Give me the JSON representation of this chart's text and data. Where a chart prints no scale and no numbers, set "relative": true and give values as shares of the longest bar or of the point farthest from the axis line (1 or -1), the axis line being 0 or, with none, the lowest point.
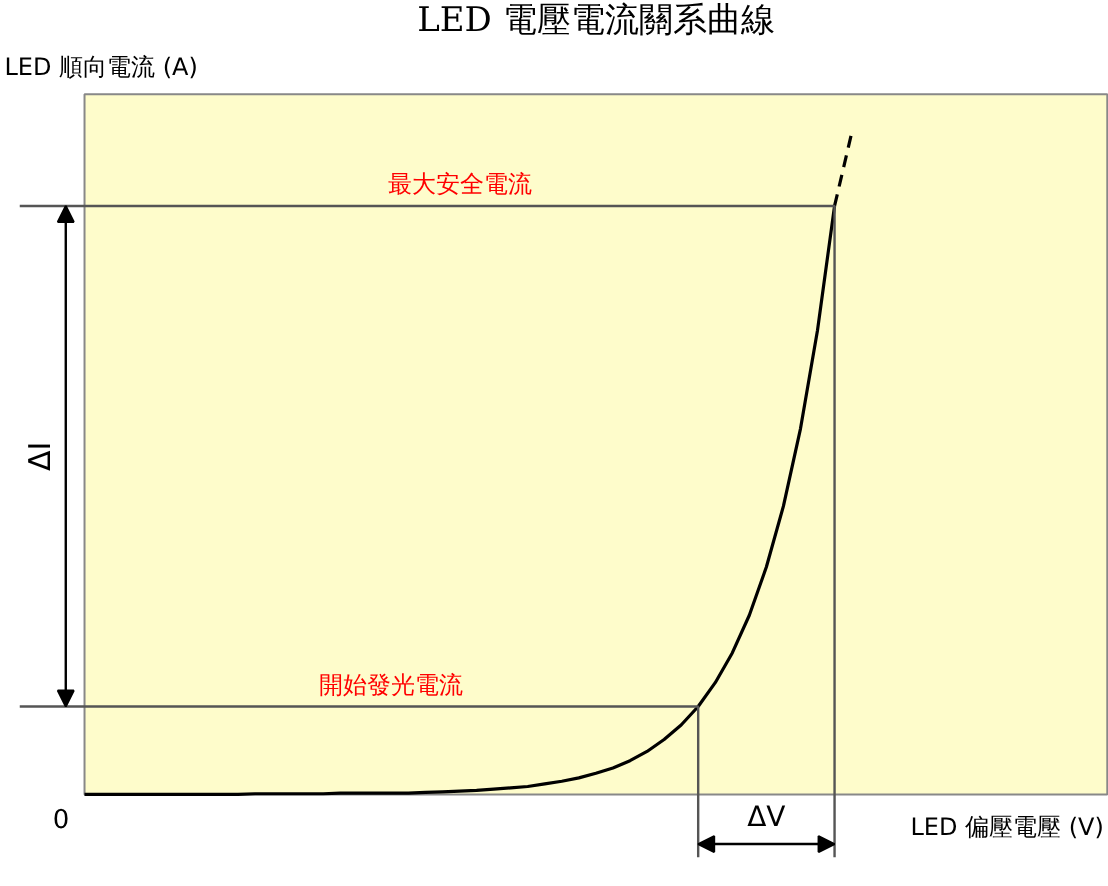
{
  "chart_data": {
    "type": "line",
    "title": "LED 電壓電流關系曲線",
    "xlabel": "LED 偏壓電壓 (V)",
    "ylabel": "LED 順向電流 (A)",
    "relative": true,
    "categories": [
      null,
      null,
      null,
      null,
      null,
      null,
      null,
      null,
      null,
      null,
      null,
      null,
      null,
      null,
      null,
      null,
      null,
      null,
      null,
      null,
      null,
      null,
      null,
      null,
      null,
      null,
      null,
      null,
      null,
      null,
      null,
      null,
      null,
      null,
      null,
      null,
      null,
      null,
      null,
      null,
      null,
      null,
      null,
      null,
      null,
      null,
      null,
      null,
      null,
      null,
      null,
      null,
      null,
      null,
      null,
      null,
      null,
      null,
      null,
      null,
      null
    ],
    "series": [
      {
        "color": "#000000",
        "line_style": "solid",
        "values": [
          0,
          0,
          0,
          0,
          0,
          0,
          0,
          0,
          0,
          0,
          0.001,
          0.001,
          0.001,
          0.001,
          0.001,
          0.002,
          0.002,
          0.002,
          0.002,
          0.002,
          0.003,
          0.004,
          0.005,
          0.006,
          0.008,
          0.01,
          0.012,
          0.016,
          0.02,
          0.025,
          0.032,
          0.04,
          0.051,
          0.065,
          0.083,
          0.105,
          0.133,
          0.169,
          0.214,
          0.271,
          0.344,
          0.436,
          0.553,
          0.702,
          0.89,
          null,
          null,
          null,
          null,
          null,
          null,
          null,
          null,
          null,
          null,
          null,
          null,
          null,
          null,
          null,
          null
        ]
      },
      {
        "color": "#000000",
        "line_style": "dashed",
        "values": [
          null,
          null,
          null,
          null,
          null,
          null,
          null,
          null,
          null,
          null,
          null,
          null,
          null,
          null,
          null,
          null,
          null,
          null,
          null,
          null,
          null,
          null,
          null,
          null,
          null,
          null,
          null,
          null,
          null,
          null,
          null,
          null,
          null,
          null,
          null,
          null,
          null,
          null,
          null,
          null,
          null,
          null,
          null,
          null,
          0.89,
          1.0,
          null,
          null,
          null,
          null,
          null,
          null,
          null,
          null,
          null,
          null,
          null,
          null,
          null,
          null,
          null
        ]
      }
    ],
    "ref_lines": [
      {
        "axis": "y",
        "value": 0.89,
        "label": "最大安全電流",
        "color": "#555555"
      },
      {
        "axis": "y",
        "value": 0.133,
        "label": "開始發光電流",
        "color": "#555555"
      }
    ],
    "annotations": [
      "0",
      "ΔI",
      "ΔV"
    ]
  }
}
